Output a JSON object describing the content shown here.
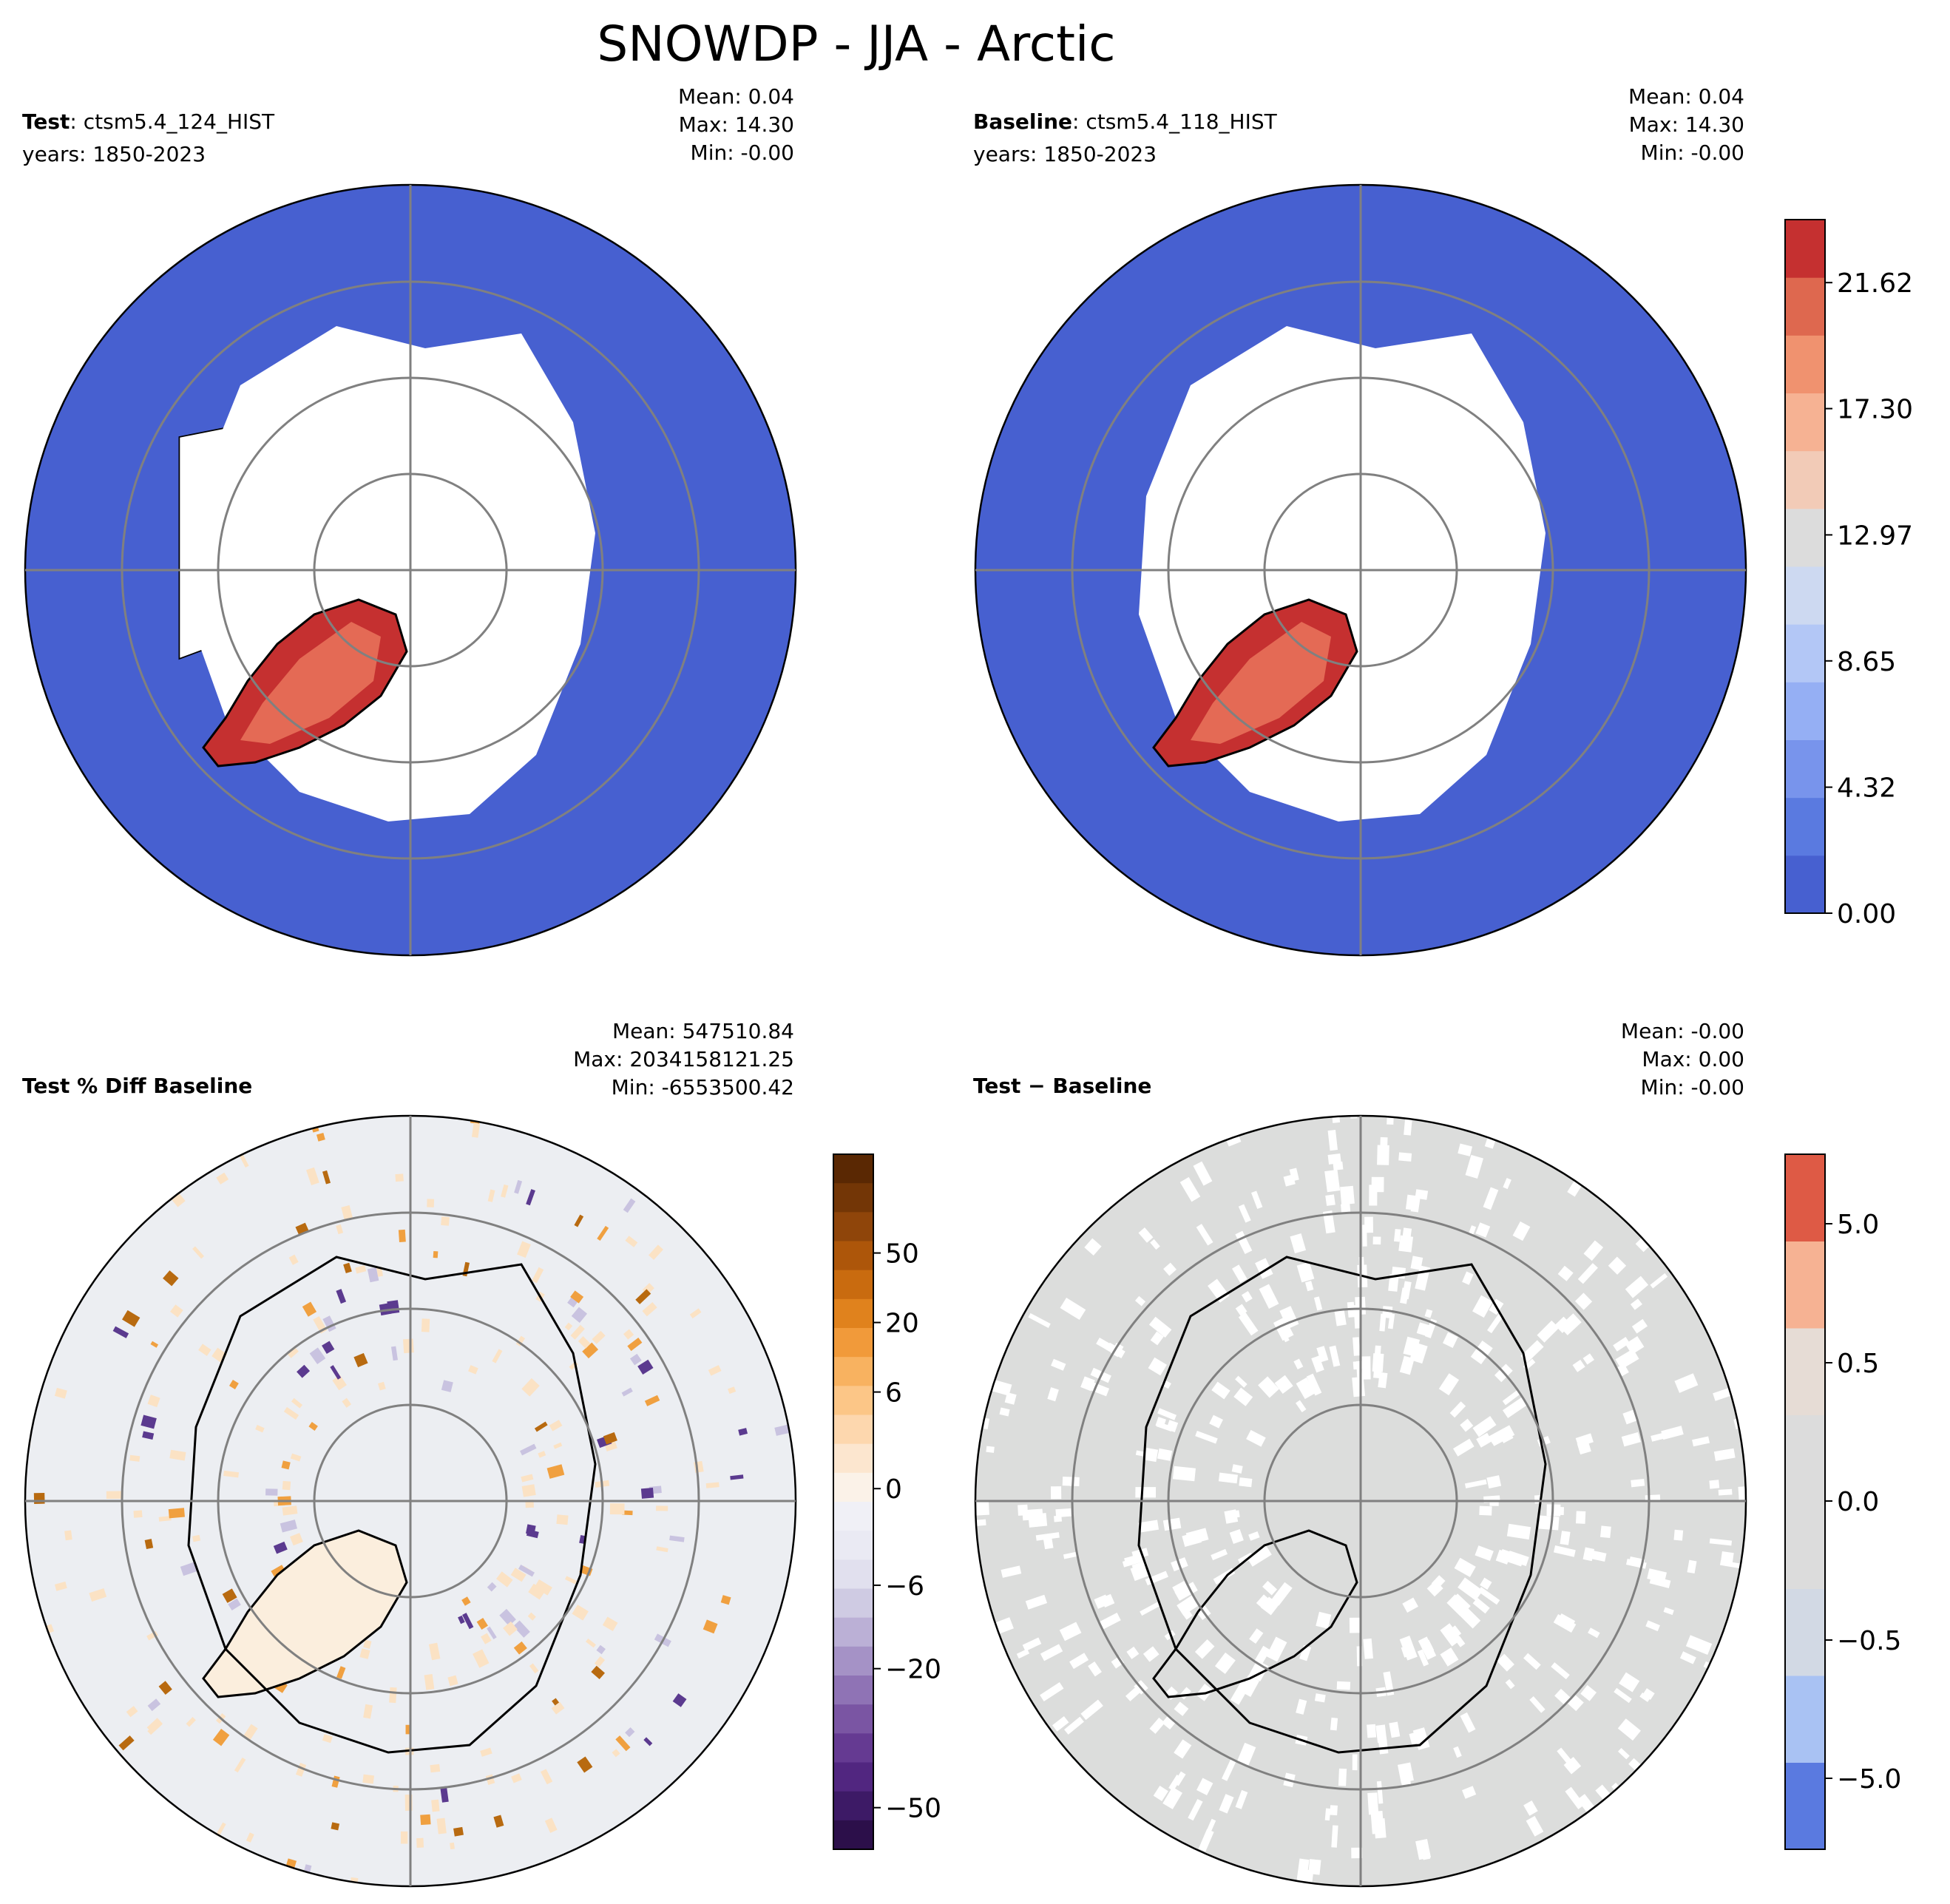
{
  "figure": {
    "title": "SNOWDP - JJA - Arctic"
  },
  "panels": [
    {
      "id": "test",
      "label_bold": "Test",
      "label_rest": ": ctsm5.4_124_HIST",
      "years": "years: 1850-2023",
      "stats": {
        "mean": "Mean:  0.04",
        "max": "Max: 14.30",
        "min": "Min: -0.00"
      }
    },
    {
      "id": "baseline",
      "label_bold": "Baseline",
      "label_rest": ": ctsm5.4_118_HIST",
      "years": "years: 1850-2023",
      "stats": {
        "mean": "Mean:  0.04",
        "max": "Max: 14.30",
        "min": "Min: -0.00"
      }
    },
    {
      "id": "pctdiff",
      "label_bold": "Test % Diff Baseline",
      "label_rest": "",
      "years": "",
      "stats": {
        "mean": "Mean: 547510.84",
        "max": "Max: 2034158121.25",
        "min": "Min: -6553500.42"
      }
    },
    {
      "id": "diff",
      "label_bold": "Test − Baseline",
      "label_rest": "",
      "years": "",
      "stats": {
        "mean": "Mean: -0.00",
        "max": "Max:  0.00",
        "min": "Min: -0.00"
      }
    }
  ],
  "colors": {
    "land_bg": "#ffffff",
    "coast": "#000000",
    "grid": "#808080",
    "snow_zero": "#4760d0",
    "diff_bg": "#eceef2",
    "abs_bg": "#dcdddc",
    "brown": "#b86a10",
    "purple": "#5b3a8f"
  },
  "chart_data": [
    {
      "type": "heatmap",
      "title": "Test: ctsm5.4_124_HIST",
      "colorbar": {
        "ticks": [
          "0.00",
          "4.32",
          "8.65",
          "12.97",
          "17.30",
          "21.62"
        ],
        "range": [
          0,
          23.78
        ]
      }
    },
    {
      "type": "heatmap",
      "title": "Baseline: ctsm5.4_118_HIST",
      "colorbar": {
        "ticks": [
          "0.00",
          "4.32",
          "8.65",
          "12.97",
          "17.30",
          "21.62"
        ],
        "range": [
          0,
          23.78
        ]
      }
    },
    {
      "type": "heatmap",
      "title": "Test % Diff Baseline",
      "colorbar": {
        "ticks": [
          "−50",
          "−20",
          "−6",
          "0",
          "6",
          "20",
          "50"
        ],
        "levels": [
          -100,
          -70,
          -50,
          -40,
          -30,
          -20,
          -15,
          -10,
          -8,
          -6,
          -4,
          -2,
          -1,
          0,
          1,
          2,
          4,
          6,
          8,
          10,
          15,
          20,
          30,
          40,
          50,
          70,
          100
        ]
      }
    },
    {
      "type": "heatmap",
      "title": "Test − Baseline",
      "colorbar": {
        "ticks": [
          "−5.0",
          "−0.5",
          "0.0",
          "0.5",
          "5.0"
        ],
        "levels": [
          -10,
          -5,
          -1,
          -0.5,
          -0.1,
          0,
          0.1,
          0.5,
          1,
          5,
          10
        ]
      }
    }
  ]
}
